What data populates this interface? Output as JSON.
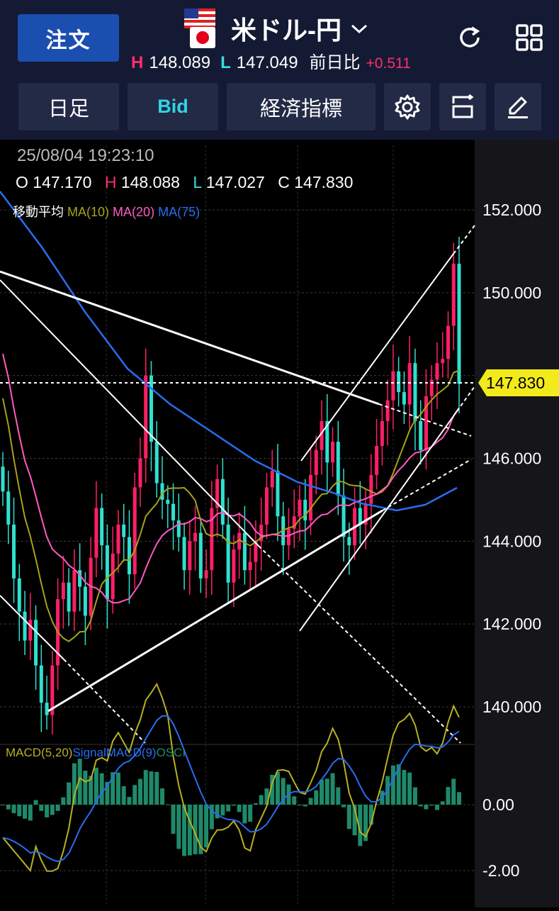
{
  "header": {
    "order_label": "注文",
    "pair_name": "米ドル-円",
    "high_label": "H",
    "high_value": "148.089",
    "low_label": "L",
    "low_value": "147.049",
    "change_label": "前日比",
    "change_value": "+0.511"
  },
  "toolbar": {
    "period_label": "日足",
    "bid_label": "Bid",
    "indicators_label": "経済指標"
  },
  "info": {
    "timestamp": "25/08/04 19:23:10",
    "o_label": "O",
    "o_value": "147.170",
    "h_label": "H",
    "h_value": "148.088",
    "l_label": "L",
    "l_value": "147.027",
    "c_label": "C",
    "c_value": "147.830"
  },
  "ma_legend": {
    "title": "移動平均",
    "ma10": "MA(10)",
    "ma20": "MA(20)",
    "ma75": "MA(75)"
  },
  "macd_legend": {
    "macd": "MACD(5,20)",
    "signal": "SignalMACD(9)",
    "osci": "OSCI"
  },
  "price_axis": {
    "ticks": [
      "152.000",
      "150.000",
      "146.000",
      "144.000",
      "142.000",
      "140.000"
    ],
    "current_price": "147.830"
  },
  "macd_axis": {
    "ticks": [
      "0.00",
      "-2.00"
    ]
  },
  "colors": {
    "up": "#ff1f66",
    "down": "#2fe0d0",
    "ma10": "#a6a21a",
    "ma20": "#ff5bc0",
    "ma75": "#2a6cf0",
    "macd": "#b8b020",
    "signal": "#2a6cf0",
    "osci": "#1f8a6a",
    "price_tag": "#f2ea1a",
    "header_bg": "#141a33",
    "order_btn": "#1a4fb0"
  },
  "chart_data": {
    "type": "candlestick",
    "ylim": [
      139.0,
      153.0
    ],
    "closes": [
      145.2,
      144.4,
      143.1,
      142.3,
      141.6,
      142.1,
      141.0,
      140.1,
      139.8,
      141.0,
      142.6,
      143.0,
      142.3,
      143.3,
      142.9,
      142.2,
      143.6,
      144.8,
      143.9,
      142.6,
      143.7,
      144.4,
      144.1,
      143.2,
      145.3,
      146.0,
      148.0,
      146.4,
      145.4,
      145.0,
      144.9,
      144.5,
      144.1,
      143.3,
      144.0,
      144.2,
      143.1,
      143.3,
      144.8,
      145.5,
      144.4,
      143.0,
      143.8,
      144.2,
      143.3,
      143.5,
      144.0,
      144.4,
      145.3,
      145.7,
      144.6,
      143.9,
      144.3,
      144.6,
      145.0,
      144.5,
      145.6,
      146.2,
      146.9,
      145.9,
      146.4,
      145.1,
      144.1,
      143.9,
      144.8,
      144.4,
      144.9,
      145.6,
      146.3,
      146.9,
      147.4,
      148.1,
      147.6,
      147.3,
      148.3,
      146.9,
      146.2,
      147.5,
      147.9,
      148.3,
      148.4,
      149.2,
      150.7,
      147.8
    ],
    "last_price": 147.83
  }
}
